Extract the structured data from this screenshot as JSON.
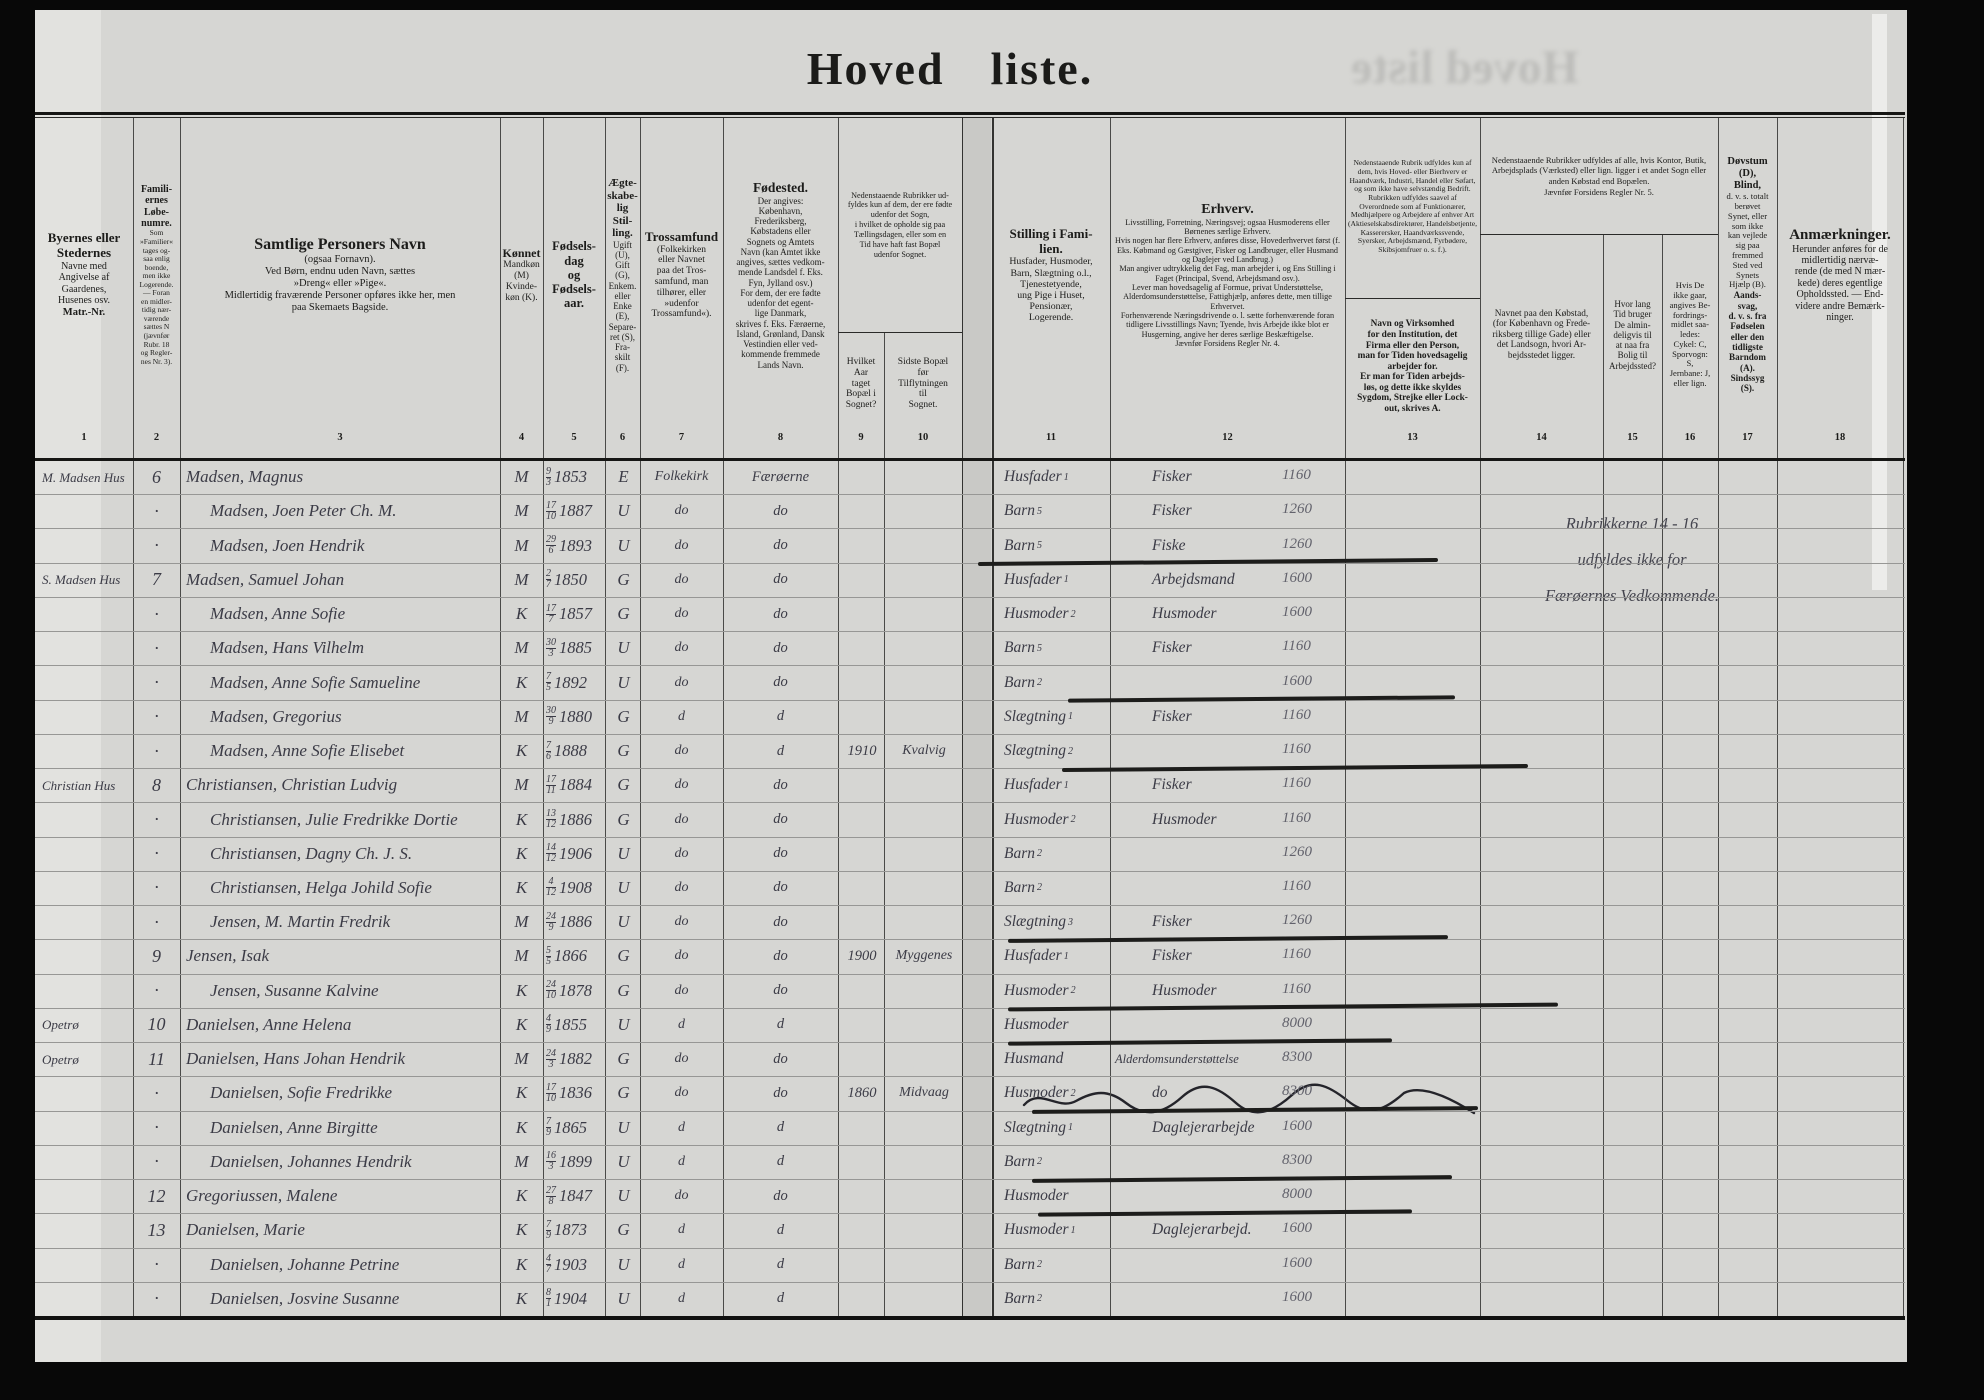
{
  "title": {
    "word1": "Hoved",
    "word2": "liste."
  },
  "bleed_text": "Hoved liste",
  "remark": {
    "line1": "Rubrikkerne 14 - 16",
    "line2": "udfyldes ikke for",
    "line3": "Færøernes Vedkommende."
  },
  "notes": {
    "cols9_10": "Nedenstaaende Rubrikker ud-\nfyldes kun af dem, der ere fødte\nudenfor det Sogn,\ni hvilket de opholde sig paa\nTællingsdagen, eller som en\nTid have haft fast Bopæl\nudenfor Sognet.",
    "cols14_16": "Nedenstaaende Rubrikker udfyldes af alle, hvis Kontor, Butik, Arbejdsplads (Værksted) eller lign. ligger i et andet Sogn eller anden Købstad end Bopælen.\nJævnfør Forsidens Regler Nr. 5."
  },
  "columns": [
    {
      "num": "1",
      "title": "Byernes eller\nStedernes",
      "body": "Navne med\nAngivelse af\nGaardenes,\nHusenes osv.",
      "foot": "Matr.-Nr."
    },
    {
      "num": "2",
      "title": "Famili-\nernes\nLøbe-\nnumre.",
      "body": "Som\n»Familier«\ntages og-\nsaa enlig\nboende,\nmen ikke\nLogerende.\n— Foran\nen midler-\ntidig nær-\nværende\nsættes N\n(jævnfør\nRubr. 18\nog Regler-\nnes Nr. 3).",
      "foot": ""
    },
    {
      "num": "3",
      "title": "Samtlige Personers Navn",
      "body": "(ogsaa Fornavn).\nVed Børn, endnu uden Navn, sættes\n»Dreng« eller »Pige«.\nMidlertidig fraværende Personer opføres ikke her, men\npaa Skemaets Bagside.",
      "foot": ""
    },
    {
      "num": "4",
      "title": "Kønnet",
      "body": "Mandkøn\n(M)\nKvinde-\nkøn (K).",
      "foot": ""
    },
    {
      "num": "5",
      "title": "Fødsels-\ndag\nog\nFødsels-\naar.",
      "body": "",
      "foot": ""
    },
    {
      "num": "6",
      "title": "Ægte-\nskabe-\nlig\nStil-\nling.",
      "body": "Ugift\n(U),\nGift (G),\nEnkem.\neller\nEnke\n(E),\nSepare-\nret (S),\nFra-\nskilt\n(F).",
      "foot": ""
    },
    {
      "num": "7",
      "title": "Trossamfund",
      "body": "(Folkekirken\neller Navnet\npaa det Tros-\nsamfund, man\ntilhører, eller\n»udenfor\nTrossamfund«).",
      "foot": ""
    },
    {
      "num": "8",
      "title": "Fødested.",
      "body": "Der angives:\nKøbenhavn,\nFrederiksberg,\nKøbstadens eller\nSognets og Amtets\nNavn (kan Amtet ikke\nangives, sættes vedkom-\nmende Landsdel f. Eks.\nFyn, Jylland osv.)\nFor dem, der ere fødte\nudenfor det egent-\nlige Danmark,\nskrives f. Eks. Færøerne,\nIsland, Grønland, Dansk\nVestindien eller ved-\nkommende fremmede\nLands Navn.",
      "foot": ""
    },
    {
      "num": "9",
      "title": "",
      "body": "Hvilket\nAar\ntaget\nBopæl i\nSognet?",
      "foot": ""
    },
    {
      "num": "10",
      "title": "",
      "body": "Sidste Bopæl\nfør\nTilflytningen\ntil\nSognet.",
      "foot": ""
    },
    {
      "num": "11",
      "title": "Stilling i Fami-\nlien.",
      "body": "Husfader, Husmoder,\nBarn, Slægtning o.l.,\nTjenestetyende,\nung Pige i Huset,\nPensionær,\nLogerende.",
      "foot": ""
    },
    {
      "num": "12",
      "title": "Erhverv.",
      "body": "Livsstilling, Forretning, Næringsvej; ogsaa Husmoderens eller Børnenes særlige Erhverv.\nHvis nogen har flere Erhverv, anføres disse, Hovederhvervet først (f. Eks. Købmand og Gæstgiver, Fisker og Landbruger, eller Husmand og Daglejer ved Landbrug.)\nMan angiver udtrykkelig det Fag, man arbejder i, og Ens Stilling i Faget (Principal, Svend, Arbejdsmand osv.).\nLever man hovedsagelig af Formue, privat Understøttelse, Alderdomsunderstøttelse, Fattighjælp, anføres dette, men tillige Erhvervet.\nForhenværende Næringsdrivende o. l. sætte forhenværende foran tidligere Livsstillings Navn; Tyende, hvis Arbejde ikke blot er Husgerning, angive her deres særlige Beskæftigelse.\nJævnfør Forsidens Regler Nr. 4.",
      "foot": ""
    },
    {
      "num": "13",
      "title": "",
      "body": "Nedenstaaende Rubrik udfyldes kun af dem, hvis Hoved- eller Bierhverv er Haandværk, Industri, Handel eller Søfart, og som ikke have selvstændig Bedrift.\nRubrikken udfyldes saavel af Overordnede som af Funktionærer, Medhjælpere og Arbejdere af enhver Art (Aktieselskabsdirektører, Handelsbetjente, Kasserersker, Haandværkssvende, Syersker, Arbejdsmænd, Fyrbødere, Skibsjomfruer o. s. f.).",
      "foot": "Navn og Virksomhed\nfor den Institution, det\nFirma eller den Person,\nman for Tiden hovedsagelig\narbejder for.\nEr man for Tiden arbejds-\nløs, og dette ikke skyldes\nSygdom, Strejke eller Lock-\nout, skrives A."
    },
    {
      "num": "14",
      "title": "",
      "body": "Navnet paa den Købstad,\n(for København og Frede-\nriksberg tillige Gade) eller\ndet Landsogn, hvori Ar-\nbejdsstedet ligger.",
      "foot": ""
    },
    {
      "num": "15",
      "title": "",
      "body": "Hvor lang\nTid bruger\nDe almin-\ndeligvis til\nat naa fra\nBolig til\nArbejdssted?",
      "foot": ""
    },
    {
      "num": "16",
      "title": "",
      "body": "Hvis De\nikke gaar,\nangives Be-\nfordrings-\nmidlet saa-\nledes:\nCykel: C,\nSporvogn:\nS,\nJernbane: J,\neller lign.",
      "foot": ""
    },
    {
      "num": "17",
      "title": "Døvstum\n(D),\nBlind,",
      "body": "d. v. s. totalt\nberøvet\nSynet, eller\nsom ikke\nkan vejlede\nsig paa\nfremmed\nSted ved\nSynets\nHjælp (B).",
      "foot": "Aands-\nsvag,\nd. v. s. fra\nFødselen\neller den\ntidligste\nBarndom\n(A).\nSindssyg\n(S)."
    },
    {
      "num": "18",
      "title": "Anmærkninger.",
      "body": "Herunder anføres for de\nmidlertidig nærvæ-\nrende (de med N mær-\nkede) deres egentlige\nOpholdssted. — End-\nvidere andre Bemærk-\nninger.",
      "foot": ""
    }
  ],
  "rows": [
    {
      "place": "M. Madsen Hus",
      "fam": "6",
      "head": true,
      "name": "Madsen, Magnus",
      "sex": "M",
      "bd": "9",
      "bm": "3",
      "by": "1853",
      "st": "E",
      "faith": "Folkekirk",
      "born": "Færøerne",
      "yr": "",
      "res": "",
      "pos": "Husfader",
      "sup": "1",
      "occ": "Fisker",
      "code": "1160"
    },
    {
      "place": "",
      "fam": "·",
      "head": false,
      "name": "Madsen, Joen Peter Ch. M.",
      "sex": "M",
      "bd": "17",
      "bm": "10",
      "by": "1887",
      "st": "U",
      "faith": "do",
      "born": "do",
      "yr": "",
      "res": "",
      "pos": "Barn",
      "sup": "5",
      "occ": "Fisker",
      "code": "1260"
    },
    {
      "place": "",
      "fam": "·",
      "head": false,
      "name": "Madsen, Joen Hendrik",
      "sex": "M",
      "bd": "29",
      "bm": "6",
      "by": "1893",
      "st": "U",
      "faith": "do",
      "born": "do",
      "yr": "",
      "res": "",
      "pos": "Barn",
      "sup": "5",
      "occ": "Fiske",
      "code": "1260",
      "strike": true
    },
    {
      "place": "S. Madsen Hus",
      "fam": "7",
      "head": true,
      "name": "Madsen, Samuel Johan",
      "sex": "M",
      "bd": "2",
      "bm": "7",
      "by": "1850",
      "st": "G",
      "faith": "do",
      "born": "do",
      "yr": "",
      "res": "",
      "pos": "Husfader",
      "sup": "1",
      "occ": "Arbejdsmand",
      "code": "1600"
    },
    {
      "place": "",
      "fam": "·",
      "head": false,
      "name": "Madsen, Anne Sofie",
      "sex": "K",
      "bd": "17",
      "bm": "7",
      "by": "1857",
      "st": "G",
      "faith": "do",
      "born": "do",
      "yr": "",
      "res": "",
      "pos": "Husmoder",
      "sup": "2",
      "occ": "Husmoder",
      "code": "1600"
    },
    {
      "place": "",
      "fam": "·",
      "head": false,
      "name": "Madsen, Hans Vilhelm",
      "sex": "M",
      "bd": "30",
      "bm": "3",
      "by": "1885",
      "st": "U",
      "faith": "do",
      "born": "do",
      "yr": "",
      "res": "",
      "pos": "Barn",
      "sup": "5",
      "occ": "Fisker",
      "code": "1160"
    },
    {
      "place": "",
      "fam": "·",
      "head": false,
      "name": "Madsen, Anne Sofie Samueline",
      "sex": "K",
      "bd": "7",
      "bm": "5",
      "by": "1892",
      "st": "U",
      "faith": "do",
      "born": "do",
      "yr": "",
      "res": "",
      "pos": "Barn",
      "sup": "2",
      "occ": "",
      "code": "1600",
      "strike": true
    },
    {
      "place": "",
      "fam": "·",
      "head": false,
      "name": "Madsen, Gregorius",
      "sex": "M",
      "bd": "30",
      "bm": "9",
      "by": "1880",
      "st": "G",
      "faith": "d",
      "born": "d",
      "yr": "",
      "res": "",
      "pos": "Slægtning",
      "sup": "1",
      "occ": "Fisker",
      "code": "1160"
    },
    {
      "place": "",
      "fam": "·",
      "head": false,
      "name": "Madsen, Anne Sofie Elisebet",
      "sex": "K",
      "bd": "7",
      "bm": "6",
      "by": "1888",
      "st": "G",
      "faith": "do",
      "born": "d",
      "yr": "1910",
      "res": "Kvalvig",
      "pos": "Slægtning",
      "sup": "2",
      "occ": "",
      "code": "1160",
      "strike": true
    },
    {
      "place": "Christian Hus",
      "fam": "8",
      "head": true,
      "name": "Christiansen, Christian Ludvig",
      "sex": "M",
      "bd": "17",
      "bm": "11",
      "by": "1884",
      "st": "G",
      "faith": "do",
      "born": "do",
      "yr": "",
      "res": "",
      "pos": "Husfader",
      "sup": "1",
      "occ": "Fisker",
      "code": "1160"
    },
    {
      "place": "",
      "fam": "·",
      "head": false,
      "name": "Christiansen, Julie Fredrikke Dortie",
      "sex": "K",
      "bd": "13",
      "bm": "12",
      "by": "1886",
      "st": "G",
      "faith": "do",
      "born": "do",
      "yr": "",
      "res": "",
      "pos": "Husmoder",
      "sup": "2",
      "occ": "Husmoder",
      "code": "1160"
    },
    {
      "place": "",
      "fam": "·",
      "head": false,
      "name": "Christiansen, Dagny Ch. J. S.",
      "sex": "K",
      "bd": "14",
      "bm": "12",
      "by": "1906",
      "st": "U",
      "faith": "do",
      "born": "do",
      "yr": "",
      "res": "",
      "pos": "Barn",
      "sup": "2",
      "occ": "",
      "code": "1260"
    },
    {
      "place": "",
      "fam": "·",
      "head": false,
      "name": "Christiansen, Helga Johild Sofie",
      "sex": "K",
      "bd": "4",
      "bm": "12",
      "by": "1908",
      "st": "U",
      "faith": "do",
      "born": "do",
      "yr": "",
      "res": "",
      "pos": "Barn",
      "sup": "2",
      "occ": "",
      "code": "1160"
    },
    {
      "place": "",
      "fam": "·",
      "head": false,
      "name": "Jensen, M. Martin Fredrik",
      "sex": "M",
      "bd": "24",
      "bm": "9",
      "by": "1886",
      "st": "U",
      "faith": "do",
      "born": "do",
      "yr": "",
      "res": "",
      "pos": "Slægtning",
      "sup": "3",
      "occ": "Fisker",
      "code": "1260",
      "strike": true
    },
    {
      "place": "",
      "fam": "9",
      "head": true,
      "name": "Jensen, Isak",
      "sex": "M",
      "bd": "5",
      "bm": "5",
      "by": "1866",
      "st": "G",
      "faith": "do",
      "born": "do",
      "yr": "1900",
      "res": "Myggenes",
      "pos": "Husfader",
      "sup": "1",
      "occ": "Fisker",
      "code": "1160"
    },
    {
      "place": "",
      "fam": "·",
      "head": false,
      "name": "Jensen, Susanne Kalvine",
      "sex": "K",
      "bd": "24",
      "bm": "10",
      "by": "1878",
      "st": "G",
      "faith": "do",
      "born": "do",
      "yr": "",
      "res": "",
      "pos": "Husmoder",
      "sup": "2",
      "occ": "Husmoder",
      "code": "1160",
      "strike": true
    },
    {
      "place": "Opetrø",
      "fam": "10",
      "head": true,
      "name": "Danielsen, Anne Helena",
      "sex": "K",
      "bd": "4",
      "bm": "9",
      "by": "1855",
      "st": "U",
      "faith": "d",
      "born": "d",
      "yr": "",
      "res": "",
      "pos": "Husmoder",
      "sup": "",
      "occ": "",
      "code": "8000",
      "strike": true
    },
    {
      "place": "Opetrø",
      "fam": "11",
      "head": true,
      "name": "Danielsen, Hans Johan Hendrik",
      "sex": "M",
      "bd": "24",
      "bm": "3",
      "by": "1882",
      "st": "G",
      "faith": "do",
      "born": "do",
      "yr": "",
      "res": "",
      "pos": "Husmand",
      "sup": "",
      "occ": "Alderdomsunderstøttelse",
      "code": "8300"
    },
    {
      "place": "",
      "fam": "·",
      "head": false,
      "name": "Danielsen, Sofie Fredrikke",
      "sex": "K",
      "bd": "17",
      "bm": "10",
      "by": "1836",
      "st": "G",
      "faith": "do",
      "born": "do",
      "yr": "1860",
      "res": "Midvaag",
      "pos": "Husmoder",
      "sup": "2",
      "occ": "do",
      "code": "8300",
      "strike": true,
      "squiggle": true
    },
    {
      "place": "",
      "fam": "·",
      "head": false,
      "name": "Danielsen, Anne Birgitte",
      "sex": "K",
      "bd": "7",
      "bm": "9",
      "by": "1865",
      "st": "U",
      "faith": "d",
      "born": "d",
      "yr": "",
      "res": "",
      "pos": "Slægtning",
      "sup": "1",
      "occ": "Daglejerarbejde",
      "code": "1600"
    },
    {
      "place": "",
      "fam": "·",
      "head": false,
      "name": "Danielsen, Johannes Hendrik",
      "sex": "M",
      "bd": "16",
      "bm": "3",
      "by": "1899",
      "st": "U",
      "faith": "d",
      "born": "d",
      "yr": "",
      "res": "",
      "pos": "Barn",
      "sup": "2",
      "occ": "",
      "code": "8300",
      "strike": true
    },
    {
      "place": "",
      "fam": "12",
      "head": true,
      "name": "Gregoriussen, Malene",
      "sex": "K",
      "bd": "27",
      "bm": "8",
      "by": "1847",
      "st": "U",
      "faith": "do",
      "born": "do",
      "yr": "",
      "res": "",
      "pos": "Husmoder",
      "sup": "",
      "occ": "",
      "code": "8000",
      "strike": true
    },
    {
      "place": "",
      "fam": "13",
      "head": true,
      "name": "Danielsen, Marie",
      "sex": "K",
      "bd": "7",
      "bm": "9",
      "by": "1873",
      "st": "G",
      "faith": "d",
      "born": "d",
      "yr": "",
      "res": "",
      "pos": "Husmoder",
      "sup": "1",
      "occ": "Daglejerarbejd.",
      "code": "1600"
    },
    {
      "place": "",
      "fam": "·",
      "head": false,
      "name": "Danielsen, Johanne Petrine",
      "sex": "K",
      "bd": "4",
      "bm": "7",
      "by": "1903",
      "st": "U",
      "faith": "d",
      "born": "d",
      "yr": "",
      "res": "",
      "pos": "Barn",
      "sup": "2",
      "occ": "",
      "code": "1600"
    },
    {
      "place": "",
      "fam": "·",
      "head": false,
      "name": "Danielsen, Josvine Susanne",
      "sex": "K",
      "bd": "8",
      "bm": "1",
      "by": "1904",
      "st": "U",
      "faith": "d",
      "born": "d",
      "yr": "",
      "res": "",
      "pos": "Barn",
      "sup": "2",
      "occ": "",
      "code": "1600"
    }
  ]
}
